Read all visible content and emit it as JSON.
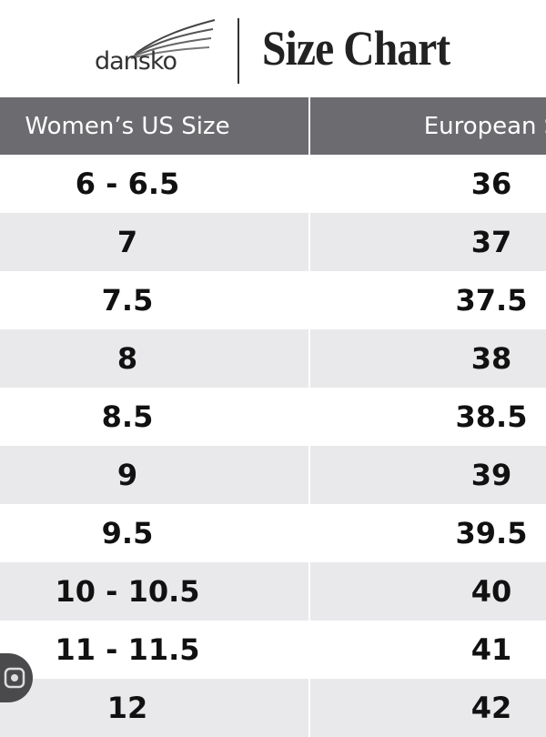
{
  "header": {
    "logo": "dansko",
    "title": "Size Chart"
  },
  "table": {
    "columns": [
      "Women’s US Size",
      "European S"
    ],
    "rows": [
      [
        "6 - 6.5",
        "36"
      ],
      [
        "7",
        "37"
      ],
      [
        "7.5",
        "37.5"
      ],
      [
        "8",
        "38"
      ],
      [
        "8.5",
        "38.5"
      ],
      [
        "9",
        "39"
      ],
      [
        "9.5",
        "39.5"
      ],
      [
        "10 - 10.5",
        "40"
      ],
      [
        "11 - 11.5",
        "41"
      ],
      [
        "12",
        "42"
      ]
    ]
  }
}
